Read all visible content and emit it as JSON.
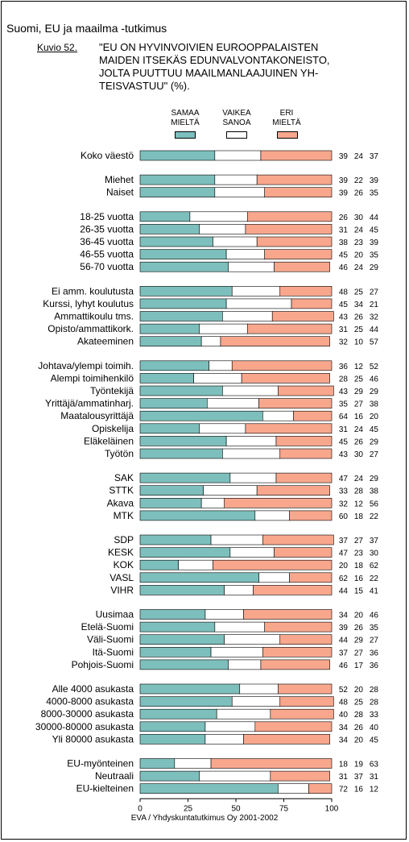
{
  "header": {
    "title": "Suomi, EU ja maailma -tutkimus",
    "figure_label": "Kuvio 52.",
    "question_lines": [
      "\"EU ON HYVINVOIVIEN EUROOPPALAISTEN",
      "MAIDEN ITSEKÄS EDUNVALVONTAKONEISTO,",
      "JOLTA PUUTTUU MAAILMANLAAJUINEN YH-",
      "TEISVASTUU\" (%)."
    ]
  },
  "legend": [
    {
      "line1": "SAMAA",
      "line2": "MIELTÄ",
      "color": "#7dbfbc"
    },
    {
      "line1": "VAIKEA",
      "line2": "SANOA",
      "color": "#ffffff"
    },
    {
      "line1": "ERI",
      "line2": "MIELTÄ",
      "color": "#f8a78d"
    }
  ],
  "footer": {
    "source": "EVA / Yhdyskuntatutkimus Oy 2001-2002"
  },
  "chart_data": {
    "type": "bar",
    "orientation": "horizontal",
    "stacked": true,
    "xlim": [
      0,
      100
    ],
    "xticks": [
      "0",
      "25",
      "50",
      "75",
      "100"
    ],
    "series": [
      {
        "name": "SAMAA MIELTÄ",
        "color": "#7dbfbc"
      },
      {
        "name": "VAIKEA SANOA",
        "color": "#ffffff"
      },
      {
        "name": "ERI MIELTÄ",
        "color": "#f8a78d"
      }
    ],
    "groups": [
      {
        "rows": [
          {
            "label": "Koko väestö",
            "values": [
              39,
              24,
              37
            ]
          }
        ]
      },
      {
        "rows": [
          {
            "label": "Miehet",
            "values": [
              39,
              22,
              39
            ]
          },
          {
            "label": "Naiset",
            "values": [
              39,
              26,
              35
            ]
          }
        ]
      },
      {
        "rows": [
          {
            "label": "18-25 vuotta",
            "values": [
              26,
              30,
              44
            ]
          },
          {
            "label": "26-35 vuotta",
            "values": [
              31,
              24,
              45
            ]
          },
          {
            "label": "36-45 vuotta",
            "values": [
              38,
              23,
              39
            ]
          },
          {
            "label": "46-55 vuotta",
            "values": [
              45,
              20,
              35
            ]
          },
          {
            "label": "56-70 vuotta",
            "values": [
              46,
              24,
              29
            ]
          }
        ]
      },
      {
        "rows": [
          {
            "label": "Ei amm. koulutusta",
            "values": [
              48,
              25,
              27
            ]
          },
          {
            "label": "Kurssi, lyhyt koulutus",
            "values": [
              45,
              34,
              21
            ]
          },
          {
            "label": "Ammattikoulu tms.",
            "values": [
              43,
              26,
              32
            ]
          },
          {
            "label": "Opisto/ammattikork.",
            "values": [
              31,
              25,
              44
            ]
          },
          {
            "label": "Akateeminen",
            "values": [
              32,
              10,
              57
            ]
          }
        ]
      },
      {
        "rows": [
          {
            "label": "Johtava/ylempi toimih.",
            "values": [
              36,
              12,
              52
            ]
          },
          {
            "label": "Alempi toimihenkilö",
            "values": [
              28,
              25,
              46
            ]
          },
          {
            "label": "Työntekijä",
            "values": [
              43,
              29,
              29
            ]
          },
          {
            "label": "Yrittäjä/ammatinharj.",
            "values": [
              35,
              27,
              38
            ]
          },
          {
            "label": "Maatalousyrittäjä",
            "values": [
              64,
              16,
              20
            ]
          },
          {
            "label": "Opiskelija",
            "values": [
              31,
              24,
              45
            ]
          },
          {
            "label": "Eläkeläinen",
            "values": [
              45,
              26,
              29
            ]
          },
          {
            "label": "Työtön",
            "values": [
              43,
              30,
              27
            ]
          }
        ]
      },
      {
        "rows": [
          {
            "label": "SAK",
            "values": [
              47,
              24,
              29
            ]
          },
          {
            "label": "STTK",
            "values": [
              33,
              28,
              38
            ]
          },
          {
            "label": "Akava",
            "values": [
              32,
              12,
              56
            ]
          },
          {
            "label": "MTK",
            "values": [
              60,
              18,
              22
            ]
          }
        ]
      },
      {
        "rows": [
          {
            "label": "SDP",
            "values": [
              37,
              27,
              37
            ]
          },
          {
            "label": "KESK",
            "values": [
              47,
              23,
              30
            ]
          },
          {
            "label": "KOK",
            "values": [
              20,
              18,
              62
            ]
          },
          {
            "label": "VASL",
            "values": [
              62,
              16,
              22
            ]
          },
          {
            "label": "VIHR",
            "values": [
              44,
              15,
              41
            ]
          }
        ]
      },
      {
        "rows": [
          {
            "label": "Uusimaa",
            "values": [
              34,
              20,
              46
            ]
          },
          {
            "label": "Etelä-Suomi",
            "values": [
              39,
              26,
              35
            ]
          },
          {
            "label": "Väli-Suomi",
            "values": [
              44,
              29,
              27
            ]
          },
          {
            "label": "Itä-Suomi",
            "values": [
              37,
              27,
              36
            ]
          },
          {
            "label": "Pohjois-Suomi",
            "values": [
              46,
              17,
              36
            ]
          }
        ]
      },
      {
        "rows": [
          {
            "label": "Alle 4000 asukasta",
            "values": [
              52,
              20,
              28
            ]
          },
          {
            "label": "4000-8000 asukasta",
            "values": [
              48,
              25,
              28
            ]
          },
          {
            "label": "8000-30000 asukasta",
            "values": [
              40,
              28,
              33
            ]
          },
          {
            "label": "30000-80000 asukasta",
            "values": [
              34,
              26,
              40
            ]
          },
          {
            "label": "Yli 80000 asukasta",
            "values": [
              34,
              20,
              45
            ]
          }
        ]
      },
      {
        "rows": [
          {
            "label": "EU-myönteinen",
            "values": [
              18,
              19,
              63
            ]
          },
          {
            "label": "Neutraali",
            "values": [
              31,
              37,
              31
            ]
          },
          {
            "label": "EU-kielteinen",
            "values": [
              72,
              16,
              12
            ]
          }
        ]
      }
    ]
  }
}
